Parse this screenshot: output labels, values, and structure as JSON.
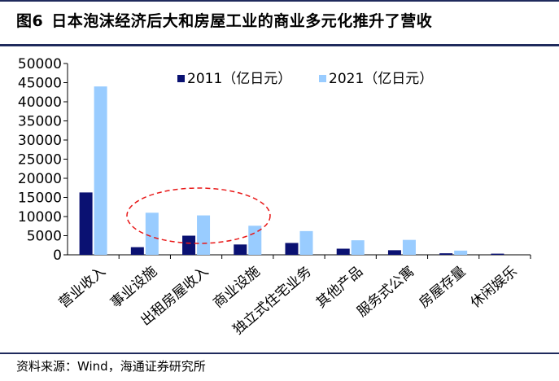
{
  "header": {
    "figure_label": "图6",
    "title": "日本泡沫经济后大和房屋工业的商业多元化推升了营收"
  },
  "footer": {
    "source": "资料来源：Wind，海通证券研究所"
  },
  "chart_data": {
    "type": "bar",
    "title": "",
    "xlabel": "",
    "ylabel": "",
    "ylim": [
      0,
      50000
    ],
    "yticks": [
      "0",
      "5000",
      "10000",
      "15000",
      "20000",
      "25000",
      "30000",
      "35000",
      "40000",
      "45000",
      "50000"
    ],
    "grid": false,
    "legend_position": "top-center",
    "categories": [
      "营业收入",
      "事业设施",
      "出租房屋收入",
      "商业设施",
      "独立式住宅业务",
      "其他产品",
      "服务式公寓",
      "房屋存量",
      "休闲娱乐"
    ],
    "series": [
      {
        "name": "2011（亿日元）",
        "color": "#0a1172",
        "values": [
          16300,
          2000,
          5000,
          2700,
          3100,
          1600,
          1200,
          400,
          300
        ]
      },
      {
        "name": "2021（亿日元）",
        "color": "#99ccff",
        "values": [
          44000,
          11000,
          10300,
          7600,
          6200,
          3800,
          3900,
          1100,
          0
        ]
      }
    ],
    "annotation": "red dashed ellipse highlighting 事业设施, 出租房屋收入 and 商业设施"
  }
}
